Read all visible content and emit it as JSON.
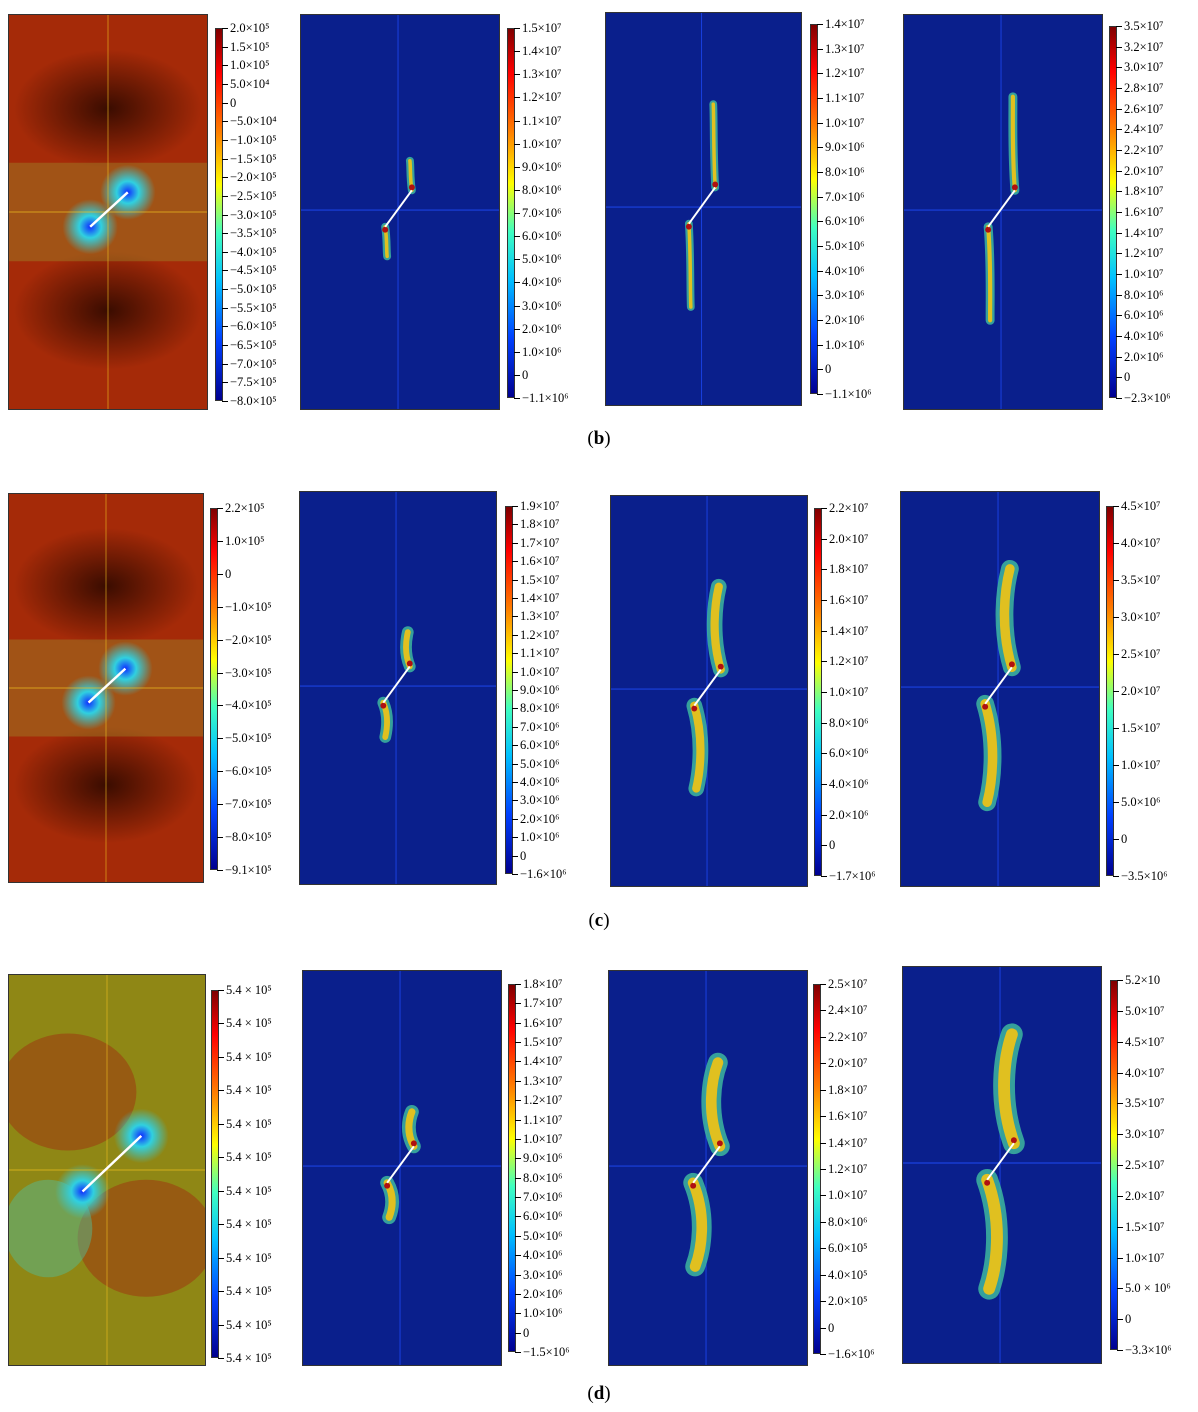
{
  "captions": [
    "b",
    "c",
    "d"
  ],
  "rows": [
    {
      "panels": [
        {
          "kind": "stress",
          "labels": [
            "2.0×10⁵",
            "1.5×10⁵",
            "1.0×10⁵",
            "5.0×10⁴",
            "0",
            "−5.0×10⁴",
            "−1.0×10⁵",
            "−1.5×10⁵",
            "−2.0×10⁵",
            "−2.5×10⁵",
            "−3.0×10⁵",
            "−3.5×10⁵",
            "−4.0×10⁵",
            "−4.5×10⁵",
            "−5.0×10⁵",
            "−5.5×10⁵",
            "−6.0×10⁵",
            "−6.5×10⁵",
            "−7.0×10⁵",
            "−7.5×10⁵",
            "−8.0×10⁵"
          ]
        },
        {
          "kind": "damage",
          "labels": [
            "1.5×10⁷",
            "1.4×10⁷",
            "1.3×10⁷",
            "1.2×10⁷",
            "1.1×10⁷",
            "1.0×10⁷",
            "9.0×10⁶",
            "8.0×10⁶",
            "7.0×10⁶",
            "6.0×10⁶",
            "5.0×10⁶",
            "4.0×10⁶",
            "3.0×10⁶",
            "2.0×10⁶",
            "1.0×10⁶",
            "0",
            "−1.1×10⁶"
          ]
        },
        {
          "kind": "damage",
          "labels": [
            "1.4×10⁷",
            "1.3×10⁷",
            "1.2×10⁷",
            "1.1×10⁷",
            "1.0×10⁷",
            "9.0×10⁶",
            "8.0×10⁶",
            "7.0×10⁶",
            "6.0×10⁶",
            "5.0×10⁶",
            "4.0×10⁶",
            "3.0×10⁶",
            "2.0×10⁶",
            "1.0×10⁶",
            "0",
            "−1.1×10⁶"
          ]
        },
        {
          "kind": "damage",
          "labels": [
            "3.5×10⁷",
            "3.2×10⁷",
            "3.0×10⁷",
            "2.8×10⁷",
            "2.6×10⁷",
            "2.4×10⁷",
            "2.2×10⁷",
            "2.0×10⁷",
            "1.8×10⁷",
            "1.6×10⁷",
            "1.4×10⁷",
            "1.2×10⁷",
            "1.0×10⁷",
            "8.0×10⁶",
            "6.0×10⁶",
            "4.0×10⁶",
            "2.0×10⁶",
            "0",
            "−2.3×10⁶"
          ]
        }
      ]
    },
    {
      "panels": [
        {
          "kind": "stress",
          "labels": [
            "2.2×10⁵",
            "1.0×10⁵",
            "0",
            "−1.0×10⁵",
            "−2.0×10⁵",
            "−3.0×10⁵",
            "−4.0×10⁵",
            "−5.0×10⁵",
            "−6.0×10⁵",
            "−7.0×10⁵",
            "−8.0×10⁵",
            "−9.1×10⁵"
          ]
        },
        {
          "kind": "damage",
          "labels": [
            "1.9×10⁷",
            "1.8×10⁷",
            "1.7×10⁷",
            "1.6×10⁷",
            "1.5×10⁷",
            "1.4×10⁷",
            "1.3×10⁷",
            "1.2×10⁷",
            "1.1×10⁷",
            "1.0×10⁷",
            "9.0×10⁶",
            "8.0×10⁶",
            "7.0×10⁶",
            "6.0×10⁶",
            "5.0×10⁶",
            "4.0×10⁶",
            "3.0×10⁶",
            "2.0×10⁶",
            "1.0×10⁶",
            "0",
            "−1.6×10⁶"
          ]
        },
        {
          "kind": "damage",
          "labels": [
            "2.2×10⁷",
            "2.0×10⁷",
            "1.8×10⁷",
            "1.6×10⁷",
            "1.4×10⁷",
            "1.2×10⁷",
            "1.0×10⁷",
            "8.0×10⁶",
            "6.0×10⁶",
            "4.0×10⁶",
            "2.0×10⁶",
            "0",
            "−1.7×10⁶"
          ]
        },
        {
          "kind": "damage",
          "labels": [
            "4.5×10⁷",
            "4.0×10⁷",
            "3.5×10⁷",
            "3.0×10⁷",
            "2.5×10⁷",
            "2.0×10⁷",
            "1.5×10⁷",
            "1.0×10⁷",
            "5.0×10⁶",
            "0",
            "−3.5×10⁶"
          ]
        }
      ]
    },
    {
      "panels": [
        {
          "kind": "stress",
          "labels": [
            "5.4 × 10⁵",
            "5.4 × 10⁵",
            "5.4 × 10⁵",
            "5.4 × 10⁵",
            "5.4 × 10⁵",
            "5.4 × 10⁵",
            "5.4 × 10⁵",
            "5.4 × 10⁵",
            "5.4 × 10⁵",
            "5.4 × 10⁵",
            "5.4 × 10⁵",
            "5.4 × 10⁵"
          ]
        },
        {
          "kind": "damage",
          "labels": [
            "1.8×10⁷",
            "1.7×10⁷",
            "1.6×10⁷",
            "1.5×10⁷",
            "1.4×10⁷",
            "1.3×10⁷",
            "1.2×10⁷",
            "1.1×10⁷",
            "1.0×10⁷",
            "9.0×10⁶",
            "8.0×10⁶",
            "7.0×10⁶",
            "6.0×10⁶",
            "5.0×10⁶",
            "4.0×10⁶",
            "3.0×10⁶",
            "2.0×10⁶",
            "1.0×10⁶",
            "0",
            "−1.5×10⁶"
          ]
        },
        {
          "kind": "damage",
          "labels": [
            "2.5×10⁷",
            "2.4×10⁷",
            "2.2×10⁷",
            "2.0×10⁷",
            "1.8×10⁷",
            "1.6×10⁷",
            "1.4×10⁷",
            "1.2×10⁷",
            "1.0×10⁷",
            "8.0×10⁶",
            "6.0×10⁵",
            "4.0×10⁵",
            "2.0×10⁵",
            "0",
            "−1.6×10⁶"
          ]
        },
        {
          "kind": "damage",
          "labels": [
            "5.2×10",
            "5.0×10⁷",
            "4.5×10⁷",
            "4.0×10⁷",
            "3.5×10⁷",
            "3.0×10⁷",
            "2.5×10⁷",
            "2.0×10⁷",
            "1.5×10⁷",
            "1.0×10⁷",
            "5.0 × 10⁶",
            "0",
            "−3.3×10⁶"
          ]
        }
      ]
    }
  ]
}
